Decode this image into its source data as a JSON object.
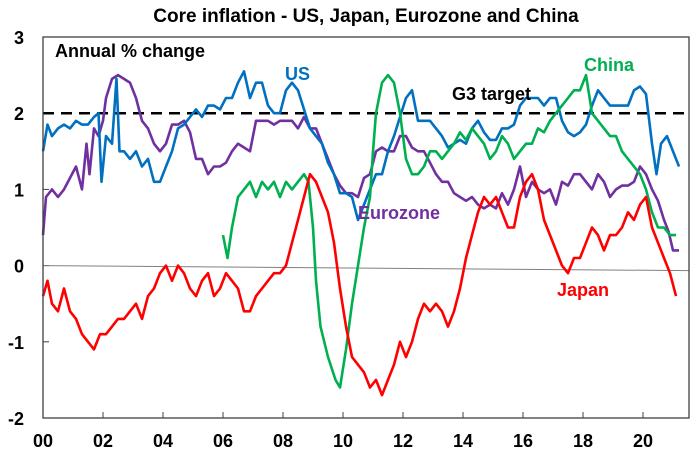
{
  "chart_data": {
    "type": "line",
    "title": "Core inflation - US, Japan, Eurozone and China",
    "subtitle": "Annual % change",
    "xlabel": "",
    "ylabel": "",
    "xlim": [
      2000,
      2021.5
    ],
    "ylim": [
      -2,
      3
    ],
    "x_ticks": [
      {
        "value": 2000,
        "label": "00"
      },
      {
        "value": 2002,
        "label": "02"
      },
      {
        "value": 2004,
        "label": "04"
      },
      {
        "value": 2006,
        "label": "06"
      },
      {
        "value": 2008,
        "label": "08"
      },
      {
        "value": 2010,
        "label": "10"
      },
      {
        "value": 2012,
        "label": "12"
      },
      {
        "value": 2014,
        "label": "14"
      },
      {
        "value": 2016,
        "label": "16"
      },
      {
        "value": 2018,
        "label": "18"
      },
      {
        "value": 2020,
        "label": "20"
      }
    ],
    "y_ticks": [
      {
        "value": 3,
        "label": "3"
      },
      {
        "value": 2,
        "label": "2"
      },
      {
        "value": 1,
        "label": "1"
      },
      {
        "value": 0,
        "label": "0"
      },
      {
        "value": -1,
        "label": "-1"
      },
      {
        "value": -2,
        "label": "-2"
      }
    ],
    "grid": false,
    "legend": "inline-labels",
    "reference_lines": [
      {
        "name": "G3 target",
        "value": 2,
        "style": "dashed",
        "color": "#000000",
        "label": "G3  target"
      },
      {
        "name": "zero",
        "value": 0,
        "style": "solid",
        "color": "#808080"
      }
    ],
    "series": [
      {
        "name": "US",
        "label": "US",
        "color": "#0070C0",
        "x": [
          2000.0,
          2000.15,
          2000.3,
          2000.5,
          2000.7,
          2000.9,
          2001.1,
          2001.3,
          2001.5,
          2001.7,
          2001.85,
          2001.95,
          2002.1,
          2002.3,
          2002.45,
          2002.55,
          2002.7,
          2002.9,
          2003.1,
          2003.3,
          2003.5,
          2003.7,
          2003.9,
          2004.1,
          2004.3,
          2004.5,
          2004.7,
          2004.9,
          2005.1,
          2005.3,
          2005.5,
          2005.7,
          2005.9,
          2006.1,
          2006.3,
          2006.5,
          2006.7,
          2006.9,
          2007.1,
          2007.3,
          2007.5,
          2007.7,
          2007.9,
          2008.1,
          2008.3,
          2008.5,
          2008.7,
          2008.9,
          2009.1,
          2009.3,
          2009.5,
          2009.7,
          2009.9,
          2010.1,
          2010.3,
          2010.5,
          2010.7,
          2010.9,
          2011.1,
          2011.3,
          2011.5,
          2011.7,
          2011.9,
          2012.1,
          2012.3,
          2012.5,
          2012.7,
          2012.9,
          2013.1,
          2013.3,
          2013.5,
          2013.7,
          2013.9,
          2014.1,
          2014.3,
          2014.5,
          2014.7,
          2014.9,
          2015.1,
          2015.3,
          2015.5,
          2015.7,
          2015.9,
          2016.1,
          2016.3,
          2016.5,
          2016.7,
          2016.9,
          2017.1,
          2017.3,
          2017.5,
          2017.7,
          2017.9,
          2018.1,
          2018.3,
          2018.5,
          2018.7,
          2018.9,
          2019.1,
          2019.3,
          2019.5,
          2019.7,
          2019.9,
          2020.1,
          2020.3,
          2020.45,
          2020.6,
          2020.8,
          2021.0,
          2021.2
        ],
        "values": [
          1.5,
          1.85,
          1.7,
          1.8,
          1.85,
          1.8,
          1.9,
          1.85,
          1.85,
          1.95,
          2.0,
          1.1,
          1.7,
          1.6,
          2.45,
          1.5,
          1.5,
          1.4,
          1.5,
          1.3,
          1.4,
          1.1,
          1.1,
          1.3,
          1.5,
          1.8,
          1.85,
          1.95,
          2.05,
          1.95,
          2.1,
          2.1,
          2.05,
          2.2,
          2.2,
          2.4,
          2.55,
          2.2,
          2.4,
          2.4,
          2.1,
          2.0,
          2.0,
          2.3,
          2.4,
          2.3,
          2.05,
          1.8,
          1.7,
          1.6,
          1.35,
          1.2,
          0.95,
          0.95,
          0.9,
          0.6,
          0.8,
          1.0,
          1.2,
          1.2,
          1.5,
          1.7,
          1.95,
          2.2,
          2.3,
          1.9,
          1.9,
          1.9,
          1.8,
          1.7,
          1.55,
          1.6,
          1.65,
          1.6,
          1.8,
          1.9,
          1.75,
          1.65,
          1.65,
          1.8,
          1.8,
          1.85,
          2.1,
          2.2,
          2.2,
          2.2,
          2.1,
          2.2,
          2.2,
          1.9,
          1.75,
          1.7,
          1.75,
          1.85,
          2.1,
          2.3,
          2.2,
          2.1,
          2.1,
          2.1,
          2.1,
          2.3,
          2.35,
          2.25,
          1.6,
          1.2,
          1.6,
          1.7,
          1.5,
          1.3
        ]
      },
      {
        "name": "Eurozone",
        "label": "Eurozone",
        "color": "#7030A0",
        "x": [
          2000.0,
          2000.1,
          2000.3,
          2000.5,
          2000.7,
          2000.9,
          2001.1,
          2001.3,
          2001.45,
          2001.55,
          2001.7,
          2001.85,
          2002.0,
          2002.1,
          2002.3,
          2002.5,
          2002.7,
          2002.9,
          2003.1,
          2003.3,
          2003.5,
          2003.7,
          2003.9,
          2004.1,
          2004.3,
          2004.5,
          2004.7,
          2004.9,
          2005.1,
          2005.3,
          2005.5,
          2005.7,
          2005.9,
          2006.1,
          2006.3,
          2006.5,
          2006.7,
          2006.9,
          2007.1,
          2007.3,
          2007.5,
          2007.7,
          2007.9,
          2008.1,
          2008.3,
          2008.5,
          2008.7,
          2008.9,
          2009.1,
          2009.3,
          2009.5,
          2009.7,
          2009.9,
          2010.1,
          2010.3,
          2010.5,
          2010.7,
          2010.9,
          2011.1,
          2011.3,
          2011.5,
          2011.7,
          2011.9,
          2012.1,
          2012.3,
          2012.5,
          2012.7,
          2012.9,
          2013.1,
          2013.3,
          2013.5,
          2013.7,
          2013.9,
          2014.1,
          2014.3,
          2014.5,
          2014.7,
          2014.9,
          2015.1,
          2015.3,
          2015.5,
          2015.7,
          2015.9,
          2016.1,
          2016.3,
          2016.5,
          2016.7,
          2016.9,
          2017.1,
          2017.3,
          2017.5,
          2017.7,
          2017.9,
          2018.1,
          2018.3,
          2018.5,
          2018.7,
          2018.9,
          2019.1,
          2019.3,
          2019.5,
          2019.7,
          2019.9,
          2020.1,
          2020.3,
          2020.5,
          2020.7,
          2020.85,
          2021.0,
          2021.2
        ],
        "values": [
          0.4,
          0.9,
          1.0,
          0.9,
          1.0,
          1.15,
          1.3,
          1.0,
          1.6,
          1.2,
          1.8,
          1.7,
          1.9,
          2.2,
          2.45,
          2.5,
          2.45,
          2.4,
          2.2,
          1.9,
          1.8,
          1.6,
          1.5,
          1.6,
          1.85,
          1.85,
          1.9,
          1.75,
          1.4,
          1.4,
          1.2,
          1.3,
          1.3,
          1.35,
          1.5,
          1.6,
          1.55,
          1.5,
          1.9,
          1.9,
          1.9,
          1.85,
          1.9,
          1.9,
          1.9,
          1.8,
          1.95,
          1.8,
          1.8,
          1.6,
          1.4,
          1.2,
          1.05,
          0.95,
          0.95,
          0.9,
          1.15,
          1.2,
          1.5,
          1.55,
          1.5,
          1.5,
          1.7,
          1.7,
          1.55,
          1.5,
          1.5,
          1.35,
          1.2,
          1.1,
          1.1,
          0.95,
          0.9,
          0.85,
          0.9,
          0.8,
          0.75,
          0.8,
          0.75,
          0.95,
          0.8,
          1.0,
          1.3,
          0.9,
          1.1,
          1.0,
          0.95,
          1.0,
          0.8,
          1.1,
          1.05,
          1.2,
          1.2,
          1.1,
          1.0,
          1.2,
          1.1,
          0.9,
          1.0,
          1.05,
          1.05,
          1.1,
          1.3,
          1.2,
          1.0,
          0.85,
          0.6,
          0.45,
          0.2,
          0.2
        ]
      },
      {
        "name": "Japan",
        "label": "Japan",
        "color": "#FF0000",
        "x": [
          2000.0,
          2000.15,
          2000.3,
          2000.5,
          2000.7,
          2000.9,
          2001.1,
          2001.3,
          2001.5,
          2001.7,
          2001.9,
          2002.1,
          2002.3,
          2002.5,
          2002.7,
          2002.9,
          2003.1,
          2003.3,
          2003.5,
          2003.7,
          2003.9,
          2004.1,
          2004.3,
          2004.5,
          2004.7,
          2004.9,
          2005.1,
          2005.3,
          2005.5,
          2005.7,
          2005.9,
          2006.1,
          2006.3,
          2006.5,
          2006.7,
          2006.9,
          2007.1,
          2007.3,
          2007.5,
          2007.7,
          2007.9,
          2008.1,
          2008.3,
          2008.5,
          2008.7,
          2008.9,
          2009.1,
          2009.3,
          2009.5,
          2009.7,
          2009.9,
          2010.1,
          2010.3,
          2010.5,
          2010.7,
          2010.9,
          2011.1,
          2011.3,
          2011.5,
          2011.7,
          2011.9,
          2012.1,
          2012.3,
          2012.5,
          2012.7,
          2012.9,
          2013.1,
          2013.3,
          2013.5,
          2013.7,
          2013.9,
          2014.1,
          2014.3,
          2014.5,
          2014.7,
          2014.9,
          2015.1,
          2015.3,
          2015.5,
          2015.7,
          2015.9,
          2016.1,
          2016.3,
          2016.5,
          2016.7,
          2016.9,
          2017.1,
          2017.3,
          2017.5,
          2017.7,
          2017.9,
          2018.1,
          2018.3,
          2018.5,
          2018.7,
          2018.9,
          2019.1,
          2019.3,
          2019.5,
          2019.7,
          2019.9,
          2020.1,
          2020.3,
          2020.5,
          2020.7,
          2020.9,
          2021.1
        ],
        "values": [
          -0.4,
          -0.2,
          -0.5,
          -0.6,
          -0.3,
          -0.6,
          -0.7,
          -0.9,
          -1.0,
          -1.1,
          -0.9,
          -0.9,
          -0.8,
          -0.7,
          -0.7,
          -0.6,
          -0.5,
          -0.7,
          -0.4,
          -0.3,
          -0.1,
          0.0,
          -0.2,
          0.0,
          -0.1,
          -0.3,
          -0.4,
          -0.2,
          -0.1,
          -0.4,
          -0.3,
          -0.1,
          -0.2,
          -0.3,
          -0.6,
          -0.6,
          -0.4,
          -0.3,
          -0.2,
          -0.1,
          -0.1,
          0.0,
          0.3,
          0.6,
          0.9,
          1.2,
          1.1,
          0.9,
          0.7,
          0.3,
          -0.3,
          -0.8,
          -1.2,
          -1.3,
          -1.4,
          -1.6,
          -1.5,
          -1.7,
          -1.5,
          -1.3,
          -1.0,
          -1.2,
          -1.0,
          -0.7,
          -0.5,
          -0.6,
          -0.5,
          -0.6,
          -0.8,
          -0.6,
          -0.3,
          0.1,
          0.4,
          0.7,
          0.9,
          0.8,
          0.9,
          0.7,
          0.5,
          0.5,
          0.9,
          1.1,
          1.2,
          1.0,
          0.6,
          0.4,
          0.2,
          0.0,
          -0.1,
          0.1,
          0.1,
          0.3,
          0.5,
          0.4,
          0.2,
          0.4,
          0.4,
          0.5,
          0.7,
          0.6,
          0.8,
          0.9,
          0.5,
          0.3,
          0.1,
          -0.1,
          -0.4
        ]
      },
      {
        "name": "China",
        "label": "China",
        "color": "#00B050",
        "x": [
          2006.0,
          2006.15,
          2006.3,
          2006.5,
          2006.7,
          2006.9,
          2007.1,
          2007.3,
          2007.5,
          2007.7,
          2007.9,
          2008.1,
          2008.3,
          2008.5,
          2008.7,
          2008.85,
          2009.0,
          2009.1,
          2009.25,
          2009.5,
          2009.75,
          2009.9,
          2010.1,
          2010.3,
          2010.5,
          2010.7,
          2010.9,
          2011.0,
          2011.1,
          2011.3,
          2011.5,
          2011.7,
          2011.9,
          2012.1,
          2012.3,
          2012.5,
          2012.7,
          2012.9,
          2013.1,
          2013.3,
          2013.5,
          2013.7,
          2013.9,
          2014.1,
          2014.3,
          2014.5,
          2014.7,
          2014.9,
          2015.1,
          2015.3,
          2015.5,
          2015.7,
          2015.9,
          2016.1,
          2016.3,
          2016.5,
          2016.7,
          2016.9,
          2017.1,
          2017.3,
          2017.5,
          2017.7,
          2017.9,
          2018.1,
          2018.3,
          2018.5,
          2018.7,
          2018.9,
          2019.1,
          2019.3,
          2019.5,
          2019.7,
          2019.9,
          2020.1,
          2020.3,
          2020.5,
          2020.7,
          2020.9,
          2021.1
        ],
        "values": [
          0.4,
          0.1,
          0.5,
          0.9,
          1.0,
          1.1,
          0.9,
          1.1,
          1.0,
          1.1,
          0.9,
          1.1,
          1.0,
          1.1,
          1.2,
          1.1,
          0.5,
          -0.2,
          -0.8,
          -1.2,
          -1.5,
          -1.6,
          -1.1,
          -0.5,
          0.0,
          0.5,
          0.9,
          1.5,
          2.0,
          2.4,
          2.5,
          2.4,
          2.0,
          1.4,
          1.2,
          1.2,
          1.3,
          1.5,
          1.5,
          1.4,
          1.5,
          1.6,
          1.75,
          1.65,
          1.8,
          1.7,
          1.6,
          1.4,
          1.5,
          1.7,
          1.6,
          1.4,
          1.5,
          1.6,
          1.6,
          1.8,
          1.75,
          1.9,
          2.0,
          2.1,
          2.2,
          2.3,
          2.3,
          2.5,
          2.0,
          1.9,
          1.8,
          1.7,
          1.7,
          1.5,
          1.4,
          1.3,
          1.2,
          1.0,
          0.7,
          0.5,
          0.5,
          0.4,
          0.4
        ]
      }
    ],
    "annotations": [
      {
        "text": "Annual % change",
        "position": "top-left"
      },
      {
        "text": "US",
        "series": "US"
      },
      {
        "text": "China",
        "series": "China"
      },
      {
        "text": "G3  target",
        "series": "G3 target"
      },
      {
        "text": "Eurozone",
        "series": "Eurozone"
      },
      {
        "text": "Japan",
        "series": "Japan"
      }
    ]
  }
}
